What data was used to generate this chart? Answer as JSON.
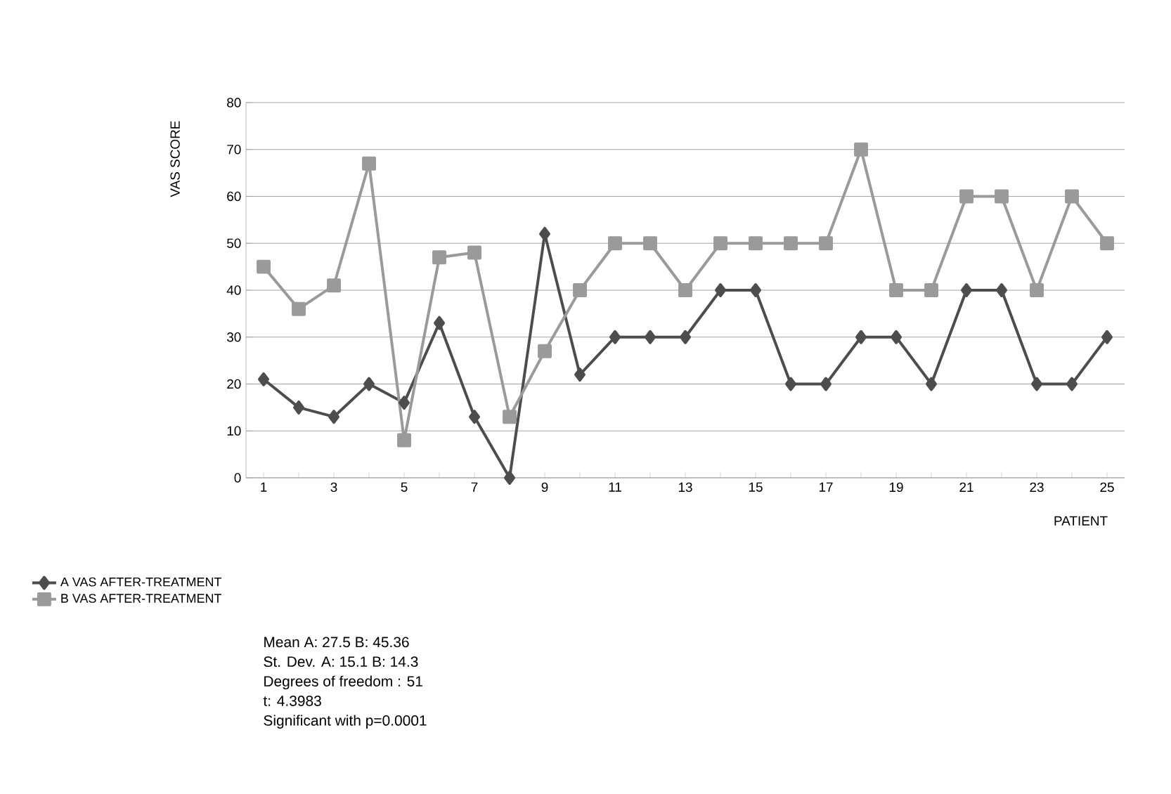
{
  "chart_data": {
    "type": "line",
    "xlabel": "PATIENT",
    "ylabel": "VAS SCORE",
    "categories": [
      "1",
      null,
      "3",
      null,
      "5",
      null,
      "7",
      null,
      "9",
      null,
      "11",
      null,
      "13",
      null,
      "15",
      null,
      "17",
      null,
      "19",
      null,
      "21",
      null,
      "23",
      null,
      "25"
    ],
    "series": [
      {
        "name": "A VAS AFTER-TREATMENT",
        "color": "#4d4d4d",
        "marker": "diamond",
        "values": [
          21,
          15,
          13,
          20,
          16,
          33,
          13,
          0,
          52,
          22,
          30,
          30,
          30,
          40,
          40,
          20,
          20,
          30,
          30,
          20,
          40,
          40,
          20,
          20,
          30
        ]
      },
      {
        "name": "B VAS AFTER-TREATMENT",
        "color": "#9a9a9a",
        "marker": "square",
        "values": [
          45,
          36,
          41,
          67,
          8,
          47,
          48,
          13,
          27,
          40,
          50,
          50,
          40,
          50,
          50,
          50,
          50,
          70,
          40,
          40,
          60,
          60,
          40,
          60,
          50
        ]
      }
    ],
    "ylim": [
      0,
      80
    ],
    "yticks": [
      0,
      10,
      20,
      30,
      40,
      50,
      60,
      70,
      80
    ],
    "grid": "y",
    "legend": "bottom left",
    "annotations": [
      "Mean A: 27.5          B: 45.36",
      "St. Dev. A: 15.1     B: 14.3",
      "Degrees of freedom : 51",
      "t: 4.3983",
      "Significant with  p=0.0001"
    ]
  }
}
